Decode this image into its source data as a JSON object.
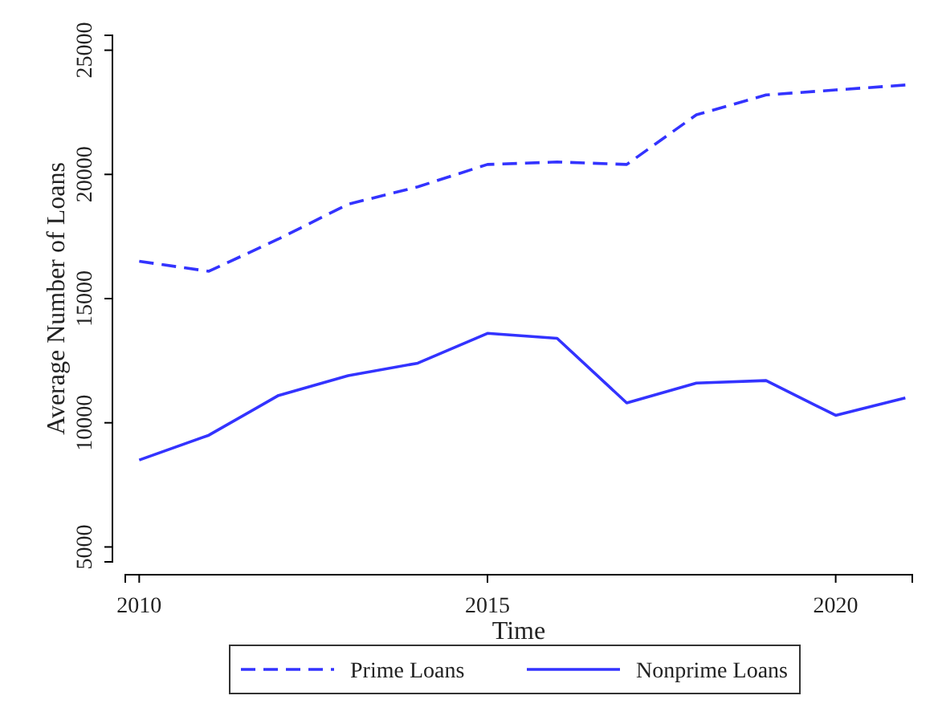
{
  "chart_data": {
    "type": "line",
    "xlabel": "Time",
    "ylabel": "Average Number of Loans",
    "x": [
      2010,
      2011,
      2012,
      2013,
      2014,
      2015,
      2016,
      2017,
      2018,
      2019,
      2020,
      2021
    ],
    "series": [
      {
        "name": "Prime Loans",
        "color": "#3333ff",
        "line_style": "dashed",
        "values": [
          16500,
          16100,
          17400,
          18800,
          19500,
          20400,
          20500,
          20400,
          22400,
          23200,
          23400,
          23600
        ]
      },
      {
        "name": "Nonprime Loans",
        "color": "#3333ff",
        "line_style": "solid",
        "values": [
          8500,
          9500,
          11100,
          11900,
          12400,
          13600,
          13400,
          10800,
          11600,
          11700,
          10300,
          11000
        ]
      }
    ],
    "xlim": [
      2009.8,
      2021.1
    ],
    "ylim": [
      4400,
      25600
    ],
    "xticks": [
      2010,
      2015,
      2020
    ],
    "yticks": [
      5000,
      10000,
      15000,
      20000,
      25000
    ],
    "grid": false,
    "legend": "bottom",
    "marker": "none"
  }
}
